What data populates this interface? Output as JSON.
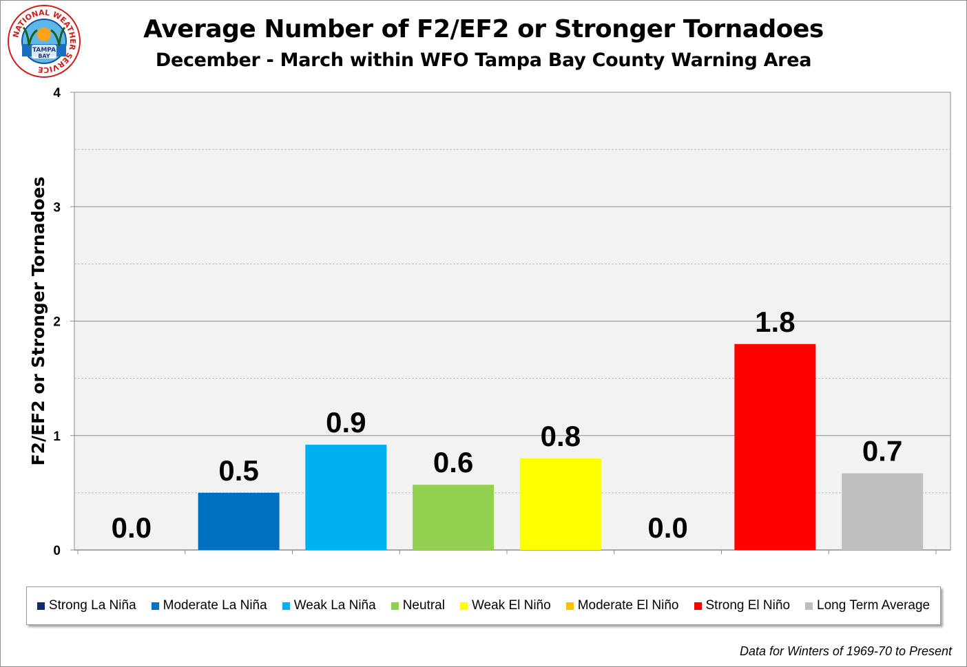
{
  "header": {
    "title": "Average Number of F2/EF2 or Stronger Tornadoes",
    "subtitle": "December - March within WFO Tampa Bay County Warning Area"
  },
  "logo": {
    "ring_text": "NATIONAL WEATHER SERVICE",
    "center_top": "TAMPA",
    "center_bottom": "BAY",
    "icon": "nws-tampa-bay-logo-icon"
  },
  "footnote": "Data for Winters of 1969-70 to Present",
  "chart_data": {
    "type": "bar",
    "title": "Average Number of F2/EF2 or Stronger Tornadoes",
    "subtitle": "December - March within WFO Tampa Bay County Warning Area",
    "xlabel": "",
    "ylabel": "F2/EF2 or Stronger Tornadoes",
    "ylim": [
      0,
      4
    ],
    "yticks": [
      "0",
      "1",
      "2",
      "3",
      "4"
    ],
    "grid": true,
    "legend_position": "bottom",
    "categories": [
      "Strong La Niña",
      "Moderate La Niña",
      "Weak La Niña",
      "Neutral",
      "Weak El Niño",
      "Moderate El Niño",
      "Strong El Niño",
      "Long Term Average"
    ],
    "values": [
      0.0,
      0.5,
      0.92,
      0.57,
      0.8,
      0.0,
      1.8,
      0.67
    ],
    "labels": [
      "0.0",
      "0.5",
      "0.9",
      "0.6",
      "0.8",
      "0.0",
      "1.8",
      "0.7"
    ],
    "colors": [
      "#0d2d6b",
      "#0070c0",
      "#00b0f0",
      "#92d050",
      "#ffff00",
      "#ffc000",
      "#ff0000",
      "#bfbfbf"
    ]
  }
}
